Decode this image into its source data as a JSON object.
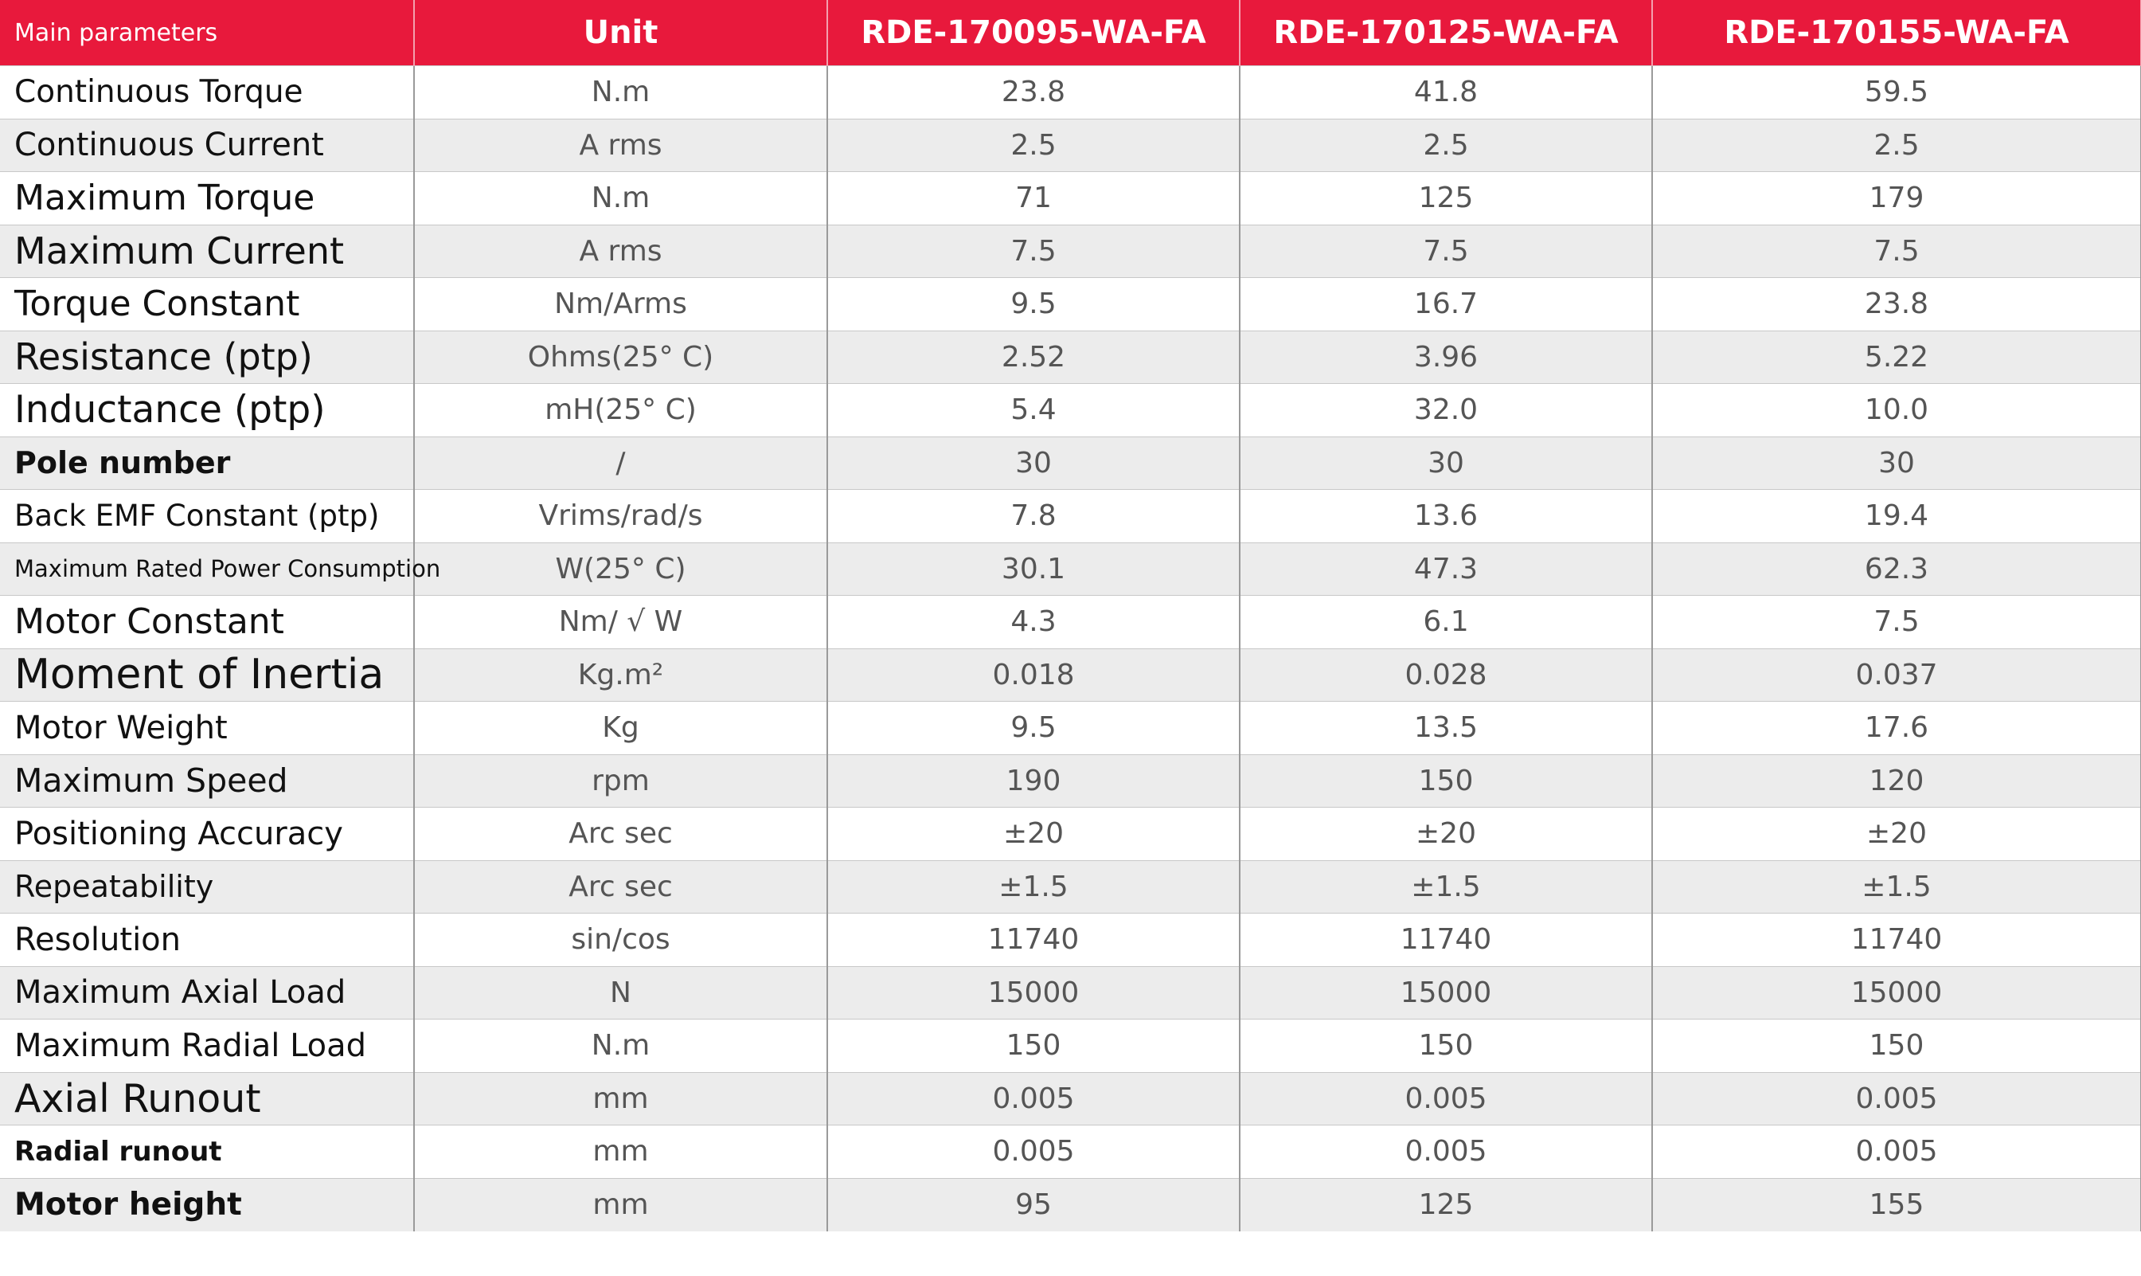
{
  "table": {
    "header": [
      "Main parameters",
      "Unit",
      "RDE-170095-WA-FA",
      "RDE-170125-WA-FA",
      "RDE-170155-WA-FA"
    ],
    "rows": [
      [
        "Continuous Torque",
        "N.m",
        "23.8",
        "41.8",
        "59.5"
      ],
      [
        "Continuous Current",
        "A rms",
        "2.5",
        "2.5",
        "2.5"
      ],
      [
        "Maximum Torque",
        "N.m",
        "71",
        "125",
        "179"
      ],
      [
        "Maximum Current",
        "A rms",
        "7.5",
        "7.5",
        "7.5"
      ],
      [
        "Torque Constant",
        "Nm/Arms",
        "9.5",
        "16.7",
        "23.8"
      ],
      [
        "Resistance (ptp)",
        "Ohms(25° C)",
        "2.52",
        "3.96",
        "5.22"
      ],
      [
        "Inductance (ptp)",
        "mH(25° C)",
        "5.4",
        "32.0",
        "10.0"
      ],
      [
        "Pole number",
        "/",
        "30",
        "30",
        "30"
      ],
      [
        "Back EMF Constant (ptp)",
        "Vrims/rad/s",
        "7.8",
        "13.6",
        "19.4"
      ],
      [
        "Maximum Rated Power Consumption",
        "W(25° C)",
        "30.1",
        "47.3",
        "62.3"
      ],
      [
        "Motor Constant",
        "Nm/ √ W",
        "4.3",
        "6.1",
        "7.5"
      ],
      [
        "Moment of Inertia",
        "Kg.m²",
        "0.018",
        "0.028",
        "0.037"
      ],
      [
        "Motor Weight",
        "Kg",
        "9.5",
        "13.5",
        "17.6"
      ],
      [
        "Maximum Speed",
        "rpm",
        "190",
        "150",
        "120"
      ],
      [
        "Positioning Accuracy",
        "Arc sec",
        "±20",
        "±20",
        "±20"
      ],
      [
        "Repeatability",
        "Arc sec",
        "±1.5",
        "±1.5",
        "±1.5"
      ],
      [
        "Resolution",
        "sin/cos",
        "11740",
        "11740",
        "11740"
      ],
      [
        "Maximum Axial Load",
        "N",
        "15000",
        "15000",
        "15000"
      ],
      [
        "Maximum Radial Load",
        "N.m",
        "150",
        "150",
        "150"
      ],
      [
        "Axial Runout",
        "mm",
        "0.005",
        "0.005",
        "0.005"
      ],
      [
        "Radial runout",
        "mm",
        "0.005",
        "0.005",
        "0.005"
      ],
      [
        "Motor height",
        "mm",
        "95",
        "125",
        "155"
      ]
    ]
  }
}
